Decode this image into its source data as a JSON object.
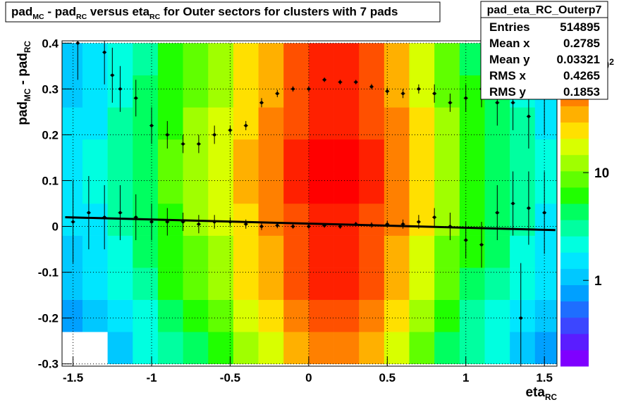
{
  "chart_data": {
    "type": "heatmap",
    "title_parts": [
      {
        "text": "pad"
      },
      {
        "sub": "MC"
      },
      {
        "text": " - pad"
      },
      {
        "sub": "RC"
      },
      {
        "text": " versus eta"
      },
      {
        "sub": "RC"
      },
      {
        "text": " for Outer sectors for clusters with 7 pads"
      }
    ],
    "x_label_parts": [
      {
        "text": "eta"
      },
      {
        "sub": "RC"
      }
    ],
    "y_label_parts": [
      {
        "text": "pad"
      },
      {
        "sub": "MC"
      },
      {
        "text": " - pad"
      },
      {
        "sub": "RC"
      }
    ],
    "xlim": [
      -1.57,
      1.58
    ],
    "ylim": [
      -0.305,
      0.405
    ],
    "xticks": [
      -1.5,
      -1,
      -0.5,
      0,
      0.5,
      1,
      1.5
    ],
    "yticks": [
      -0.3,
      -0.2,
      -0.1,
      0,
      0.1,
      0.2,
      0.3,
      0.4
    ],
    "grid": true,
    "x_edges": [
      -1.6,
      -1.44,
      -1.28,
      -1.12,
      -0.96,
      -0.8,
      -0.64,
      -0.48,
      -0.32,
      -0.16,
      0,
      0.16,
      0.32,
      0.48,
      0.64,
      0.8,
      0.96,
      1.12,
      1.28,
      1.44,
      1.6
    ],
    "y_edges": [
      -0.3,
      -0.23,
      -0.16,
      -0.09,
      -0.02,
      0.05,
      0.12,
      0.19,
      0.26,
      0.33,
      0.4
    ],
    "z": [
      [
        0,
        0,
        1.2,
        2,
        3.2,
        4.8,
        7,
        12,
        20,
        36,
        52,
        52,
        36,
        20,
        10,
        4.8,
        2.8,
        2,
        1.2,
        0.8
      ],
      [
        0.8,
        1,
        1.5,
        2.5,
        4,
        6,
        9,
        15,
        25,
        45,
        65,
        65,
        45,
        25,
        12,
        6,
        3.5,
        2.5,
        1.5,
        1
      ],
      [
        1,
        1.4,
        2.1,
        3.5,
        5.6,
        8.4,
        13,
        21,
        35,
        63,
        91,
        91,
        63,
        35,
        18,
        8.4,
        4.9,
        3.5,
        2.1,
        1.4
      ],
      [
        1.2,
        1.6,
        2.4,
        4,
        6.4,
        9.6,
        14,
        24,
        40,
        72,
        104,
        104,
        72,
        40,
        20,
        9.6,
        5.6,
        4,
        2.4,
        1.6
      ],
      [
        1.4,
        1.8,
        2.7,
        4.5,
        7.2,
        11,
        16,
        27,
        45,
        81,
        117,
        117,
        81,
        45,
        23,
        11,
        6.3,
        4.5,
        2.7,
        1.8
      ],
      [
        1.5,
        2,
        3,
        5,
        8,
        12,
        18,
        30,
        50,
        90,
        130,
        130,
        90,
        50,
        25,
        12,
        7,
        5,
        3,
        2
      ],
      [
        1.5,
        2,
        3,
        5,
        8,
        12,
        18,
        30,
        50,
        90,
        130,
        130,
        90,
        50,
        25,
        12,
        7,
        5,
        3,
        2
      ],
      [
        1.4,
        1.8,
        2.7,
        4.5,
        7.2,
        11,
        16,
        27,
        45,
        81,
        117,
        117,
        81,
        45,
        23,
        11,
        6.3,
        4.5,
        2.7,
        1.8
      ],
      [
        1.2,
        1.6,
        2.4,
        4,
        6.4,
        9.6,
        14,
        24,
        40,
        72,
        104,
        104,
        72,
        40,
        20,
        9.6,
        5.6,
        4,
        2.4,
        1.6
      ],
      [
        1,
        1.4,
        2.1,
        3.5,
        5.6,
        8.4,
        13,
        21,
        35,
        63,
        91,
        91,
        63,
        35,
        18,
        8.4,
        4.9,
        3.5,
        2.1,
        1.4
      ]
    ],
    "zlim": [
      0.16,
      167
    ],
    "zlog": true,
    "zticks": [
      1,
      10,
      {
        "value": 100,
        "label": "10",
        "exponent": "2"
      }
    ],
    "palette": [
      "#7f00ff",
      "#5a1dff",
      "#3c46ff",
      "#1e6eff",
      "#00a0ff",
      "#00c8ff",
      "#00e6ff",
      "#00ffe0",
      "#00ffa0",
      "#00ff60",
      "#20ff00",
      "#60ff00",
      "#a0ff00",
      "#d8ff00",
      "#ffe000",
      "#ffb000",
      "#ff8000",
      "#ff5000",
      "#ff2000",
      "#ff0000"
    ],
    "profiles": [
      {
        "color": "#000000",
        "x": [
          -1.47,
          -1.3,
          -1.25,
          -1.2,
          -1.1,
          -1.0,
          -0.9,
          -0.8,
          -0.7,
          -0.6,
          -0.5,
          -0.4,
          -0.3,
          -0.2,
          -0.1,
          0,
          0.1,
          0.2,
          0.3,
          0.4,
          0.5,
          0.6,
          0.7,
          0.8,
          0.9,
          1.0,
          1.1,
          1.2,
          1.3,
          1.4,
          1.5
        ],
        "values": [
          0.4,
          0.38,
          0.33,
          0.3,
          0.28,
          0.22,
          0.2,
          0.18,
          0.18,
          0.2,
          0.21,
          0.22,
          0.27,
          0.29,
          0.3,
          0.3,
          0.32,
          0.315,
          0.315,
          0.305,
          0.295,
          0.29,
          0.3,
          0.29,
          0.27,
          0.28,
          0.3,
          0.27,
          0.27,
          0.24,
          0.28
        ],
        "errors": [
          0.08,
          0.07,
          0.06,
          0.05,
          0.04,
          0.04,
          0.03,
          0.02,
          0.02,
          0.02,
          0.01,
          0.01,
          0.01,
          0.008,
          0.006,
          0.005,
          0.005,
          0.005,
          0.005,
          0.006,
          0.008,
          0.01,
          0.01,
          0.02,
          0.02,
          0.03,
          0.04,
          0.05,
          0.06,
          0.07,
          0.08
        ]
      },
      {
        "color": "#000000",
        "x": [
          -1.5,
          -1.4,
          -1.3,
          -1.2,
          -1.1,
          -1.0,
          -0.9,
          -0.8,
          -0.7,
          -0.6,
          -0.5,
          -0.4,
          -0.3,
          -0.2,
          -0.1,
          0,
          0.1,
          0.2,
          0.3,
          0.4,
          0.5,
          0.6,
          0.7,
          0.8,
          0.9,
          1.0,
          1.1,
          1.2,
          1.3,
          1.35,
          1.4,
          1.5
        ],
        "values": [
          0.01,
          0.03,
          0.02,
          0.03,
          0.02,
          0.01,
          0.01,
          0.01,
          0.005,
          0.01,
          0.01,
          0.005,
          0,
          0.002,
          0,
          0,
          0.002,
          0,
          0.005,
          0.003,
          0.005,
          0.005,
          0.01,
          0.02,
          0,
          -0.03,
          -0.04,
          0.03,
          0.05,
          -0.2,
          0.04,
          0.03
        ],
        "errors": [
          0.09,
          0.08,
          0.07,
          0.06,
          0.05,
          0.04,
          0.03,
          0.02,
          0.02,
          0.015,
          0.01,
          0.01,
          0.008,
          0.006,
          0.005,
          0.005,
          0.005,
          0.005,
          0.005,
          0.006,
          0.008,
          0.01,
          0.015,
          0.02,
          0.03,
          0.04,
          0.05,
          0.06,
          0.07,
          0.12,
          0.08,
          0.09
        ]
      }
    ],
    "fit": {
      "color": "#000000",
      "x": [
        -1.55,
        1.57
      ],
      "values": [
        0.02,
        -0.008
      ]
    },
    "stats": {
      "title": "pad_eta_RC_Outerp7",
      "rows": [
        {
          "label": "Entries",
          "value": 514895
        },
        {
          "label": "Mean x",
          "value": 0.2785
        },
        {
          "label": "Mean y",
          "value": 0.03321
        },
        {
          "label": "RMS x",
          "value": 0.4265
        },
        {
          "label": "RMS y",
          "value": 0.1853
        }
      ]
    }
  }
}
